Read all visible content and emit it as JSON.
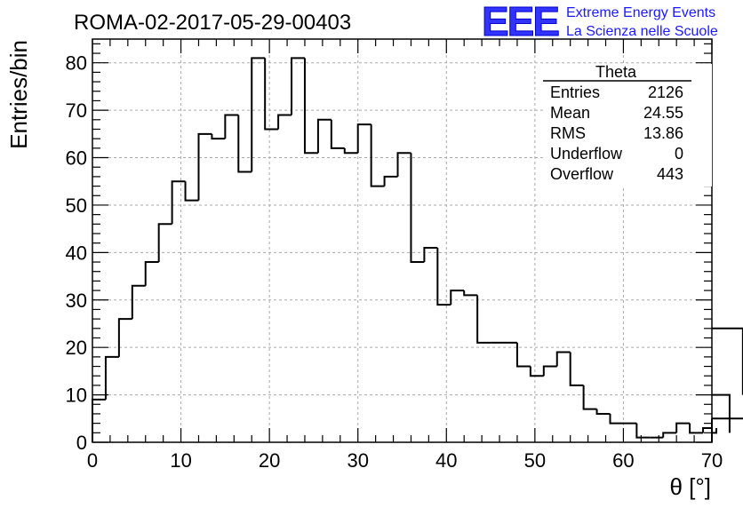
{
  "header": {
    "title": "ROMA-02-2017-05-29-00403",
    "logo_text": "EEE",
    "logo_line1": "Extreme Energy Events",
    "logo_line2": "La Scienza nelle Scuole"
  },
  "stats": {
    "title": "Theta",
    "rows": [
      {
        "label": "Entries",
        "value": "2126"
      },
      {
        "label": "Mean",
        "value": "24.55"
      },
      {
        "label": "RMS",
        "value": "13.86"
      },
      {
        "label": "Underflow",
        "value": "0"
      },
      {
        "label": "Overflow",
        "value": "443"
      }
    ]
  },
  "chart_data": {
    "type": "bar",
    "histogram": true,
    "title": "ROMA-02-2017-05-29-00403",
    "xlabel": "θ [°]",
    "ylabel": "Entries/bin",
    "xlim": [
      0,
      70
    ],
    "ylim": [
      0,
      85
    ],
    "bin_width": 1.5,
    "bin_start": 0,
    "values": [
      9,
      18,
      26,
      33,
      38,
      46,
      55,
      51,
      65,
      64,
      69,
      57,
      81,
      66,
      69,
      81,
      61,
      68,
      62,
      61,
      67,
      54,
      56,
      61,
      38,
      41,
      29,
      32,
      31,
      21,
      21,
      21,
      16,
      14,
      16,
      19,
      12,
      7,
      6,
      4,
      4,
      1,
      1,
      2,
      4,
      2,
      3,
      2,
      10,
      24,
      5
    ],
    "x_ticks": [
      0,
      10,
      20,
      30,
      40,
      50,
      60,
      70
    ],
    "y_ticks": [
      0,
      10,
      20,
      30,
      40,
      50,
      60,
      70,
      80
    ],
    "grid": true,
    "colors": {
      "line": "#000000",
      "grid": "#aaaaaa",
      "logo": "#3333ff"
    }
  }
}
